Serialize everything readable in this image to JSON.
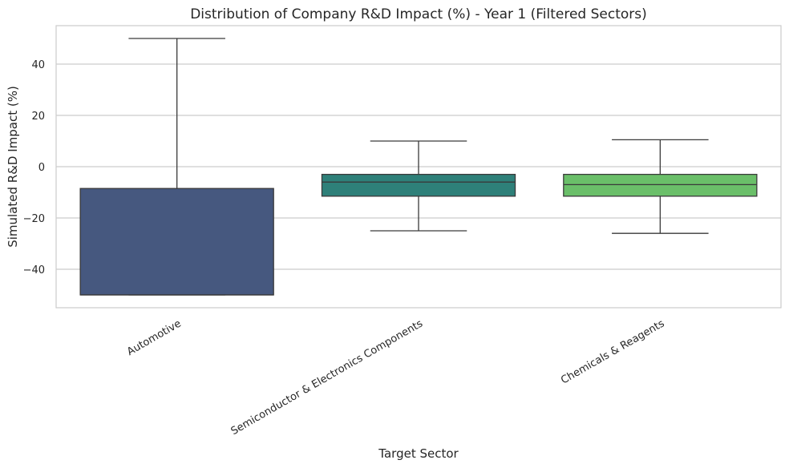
{
  "chart_data": {
    "type": "box",
    "title": "Distribution of Company R&D Impact (%) - Year 1 (Filtered Sectors)",
    "xlabel": "Target Sector",
    "ylabel": "Simulated R&D Impact (%)",
    "ylim": [
      -55,
      55
    ],
    "yticks": [
      -40,
      -20,
      0,
      20,
      40
    ],
    "grid": "horizontal",
    "categories": [
      "Automotive",
      "Semiconductor & Electronics Components",
      "Chemicals & Reagents"
    ],
    "boxes": [
      {
        "category": "Automotive",
        "whisker_low": -50,
        "q1": -50,
        "median": -50,
        "q3": -8.5,
        "whisker_high": 50,
        "color": "#46587f"
      },
      {
        "category": "Semiconductor & Electronics Components",
        "whisker_low": -25,
        "q1": -11.5,
        "median": -6,
        "q3": -3,
        "whisker_high": 10,
        "color": "#2e8079"
      },
      {
        "category": "Chemicals & Reagents",
        "whisker_low": -26,
        "q1": -11.5,
        "median": -7,
        "q3": -3,
        "whisker_high": 10.5,
        "color": "#6abf69"
      }
    ]
  }
}
